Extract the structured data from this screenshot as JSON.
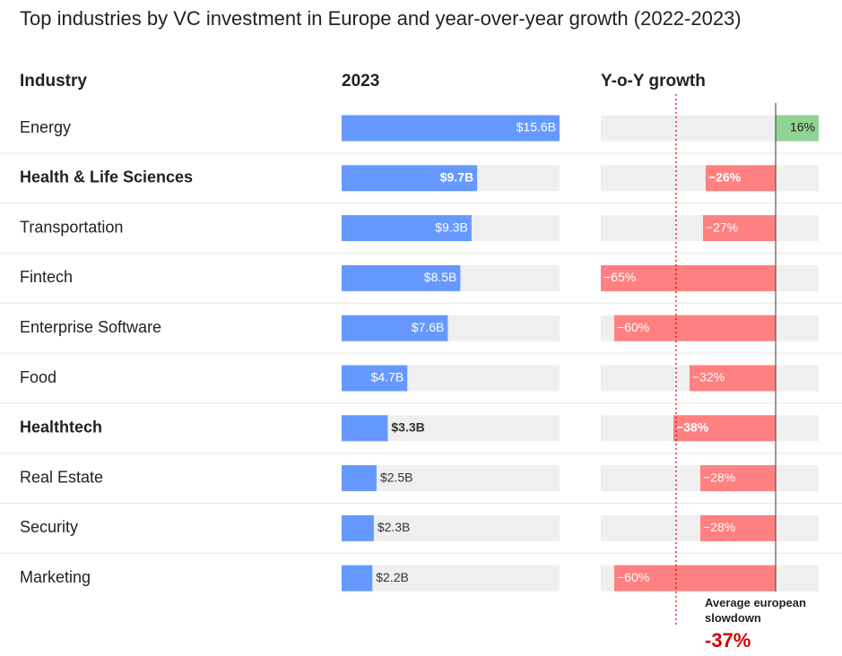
{
  "title": "Top industries by VC investment in Europe and year-over-year growth (2022-2023)",
  "headers": {
    "industry": "Industry",
    "year": "2023",
    "growth": "Y-o-Y growth"
  },
  "annotation": {
    "label": "Average european slowdown",
    "value": "-37%"
  },
  "colors": {
    "bar2023": "#6699ff",
    "positive": "#8fd494",
    "negative": "#ff8080",
    "track": "#efefef",
    "avg": "#d40000"
  },
  "chart_data": {
    "type": "bar",
    "categories": [
      "Energy",
      "Health & Life Sciences",
      "Transportation",
      "Fintech",
      "Enterprise Software",
      "Food",
      "Healthtech",
      "Real Estate",
      "Security",
      "Marketing"
    ],
    "bold": [
      false,
      true,
      false,
      false,
      false,
      false,
      true,
      false,
      false,
      false
    ],
    "series": [
      {
        "name": "2023",
        "unit": "$B",
        "values": [
          15.6,
          9.7,
          9.3,
          8.5,
          7.6,
          4.7,
          3.3,
          2.5,
          2.3,
          2.2
        ],
        "labels": [
          "$15.6B",
          "$9.7B",
          "$9.3B",
          "$8.5B",
          "$7.6B",
          "$4.7B",
          "$3.3B",
          "$2.5B",
          "$2.3B",
          "$2.2B"
        ]
      },
      {
        "name": "Y-o-Y growth",
        "unit": "%",
        "values": [
          16,
          -26,
          -27,
          -65,
          -60,
          -32,
          -38,
          -28,
          -28,
          -60
        ],
        "labels": [
          "16%",
          "−26%",
          "−27%",
          "−65%",
          "−60%",
          "−32%",
          "−38%",
          "−28%",
          "−28%",
          "−60%"
        ]
      }
    ],
    "reference_line": {
      "label": "Average european slowdown",
      "value": -37
    }
  }
}
